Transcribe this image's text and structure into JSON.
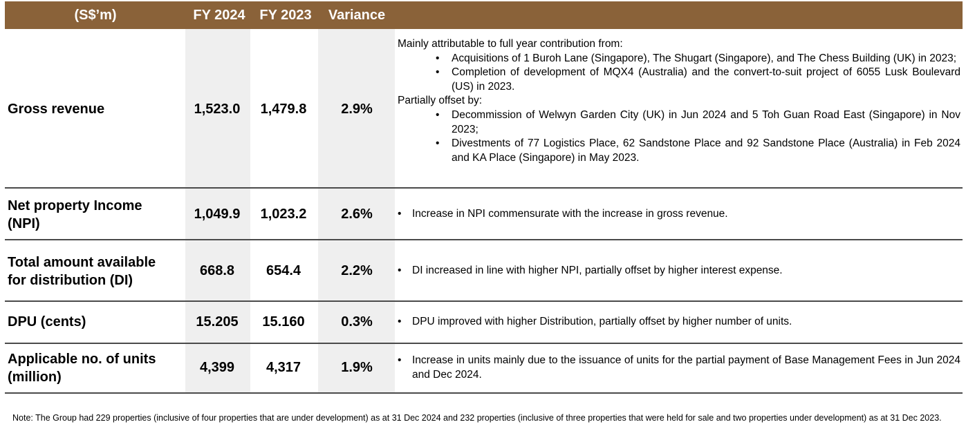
{
  "header": {
    "unit_label": "(S$’m)",
    "fy2024": "FY 2024",
    "fy2023": "FY 2023",
    "variance": "Variance"
  },
  "rows": [
    {
      "label": "Gross revenue",
      "fy2024": "1,523.0",
      "fy2023": "1,479.8",
      "variance": "2.9%",
      "commentary": {
        "intro": "Mainly attributable to full year contribution from:",
        "bullets_a": [
          "Acquisitions of 1 Buroh Lane (Singapore), The Shugart (Singapore), and The Chess Building (UK) in 2023;",
          "Completion of development of MQX4 (Australia) and the convert-to-suit project of 6055 Lusk Boulevard (US) in 2023."
        ],
        "offset_intro": "Partially offset by:",
        "bullets_b": [
          "Decommission of Welwyn Garden City (UK) in Jun 2024 and 5 Toh Guan Road East (Singapore) in Nov 2023;",
          "Divestments of 77 Logistics Place, 62 Sandstone Place and 92 Sandstone Place (Australia) in Feb 2024 and KA Place (Singapore) in May 2023."
        ]
      }
    },
    {
      "label_line1": "Net property Income",
      "label_line2": "(NPI)",
      "fy2024": "1,049.9",
      "fy2023": "1,023.2",
      "variance": "2.6%",
      "commentary": "Increase in NPI commensurate with the increase in gross revenue."
    },
    {
      "label_line1": "Total amount available",
      "label_line2": "for distribution (DI)",
      "fy2024": "668.8",
      "fy2023": "654.4",
      "variance": "2.2%",
      "commentary": "DI increased in line with higher NPI, partially offset by higher interest expense."
    },
    {
      "label": "DPU (cents)",
      "fy2024": "15.205",
      "fy2023": "15.160",
      "variance": "0.3%",
      "commentary": "DPU improved with higher Distribution, partially offset by higher number of units."
    },
    {
      "label_line1": "Applicable no. of units",
      "label_line2": "(million)",
      "fy2024": "4,399",
      "fy2023": "4,317",
      "variance": "1.9%",
      "commentary": "Increase in units mainly due to the issuance of units for the partial payment of Base Management Fees in Jun 2024 and Dec 2024."
    }
  ],
  "bullet_char": "•",
  "footnote": "Note: The Group had 229 properties (inclusive of four properties that are under development) as at 31 Dec 2024 and 232 properties (inclusive of three properties that were held for sale and two properties under development) as at 31 Dec 2023.",
  "colors": {
    "header_bg": "#8a6239",
    "shade": "#efefef",
    "rule": "#4a4a4a"
  }
}
